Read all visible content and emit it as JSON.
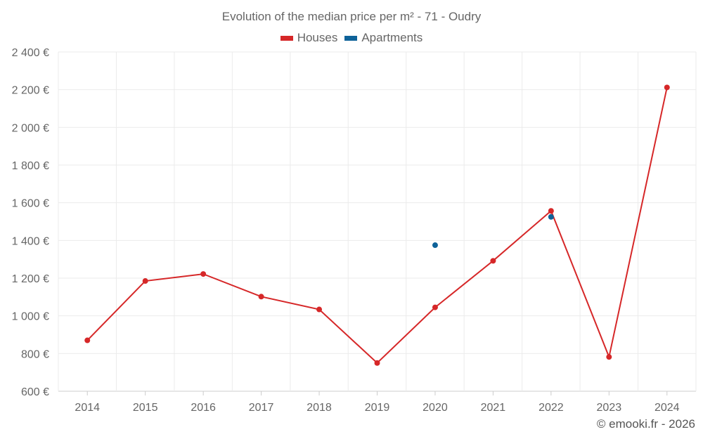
{
  "chart_data": {
    "type": "line",
    "title": "Evolution of the median price per m² - 71 - Oudry",
    "categories": [
      "2014",
      "2015",
      "2016",
      "2017",
      "2018",
      "2019",
      "2020",
      "2021",
      "2022",
      "2023",
      "2024"
    ],
    "series": [
      {
        "name": "Houses",
        "color": "#d62728",
        "values": [
          870,
          1185,
          1222,
          1102,
          1034,
          750,
          1045,
          1292,
          1557,
          782,
          2212
        ]
      },
      {
        "name": "Apartments",
        "color": "#0e6299",
        "values": [
          null,
          null,
          null,
          null,
          null,
          null,
          1375,
          null,
          1525,
          null,
          null
        ]
      }
    ],
    "ylim": [
      600,
      2400
    ],
    "yticks": [
      600,
      800,
      1000,
      1200,
      1400,
      1600,
      1800,
      2000,
      2200,
      2400
    ],
    "ytick_labels": [
      "600 €",
      "800 €",
      "1 000 €",
      "1 200 €",
      "1 400 €",
      "1 600 €",
      "1 800 €",
      "2 000 €",
      "2 200 €",
      "2 400 €"
    ],
    "xlabel": "",
    "ylabel": "",
    "grid": true,
    "legend_position": "top-center"
  },
  "credit": "© emooki.fr - 2026"
}
